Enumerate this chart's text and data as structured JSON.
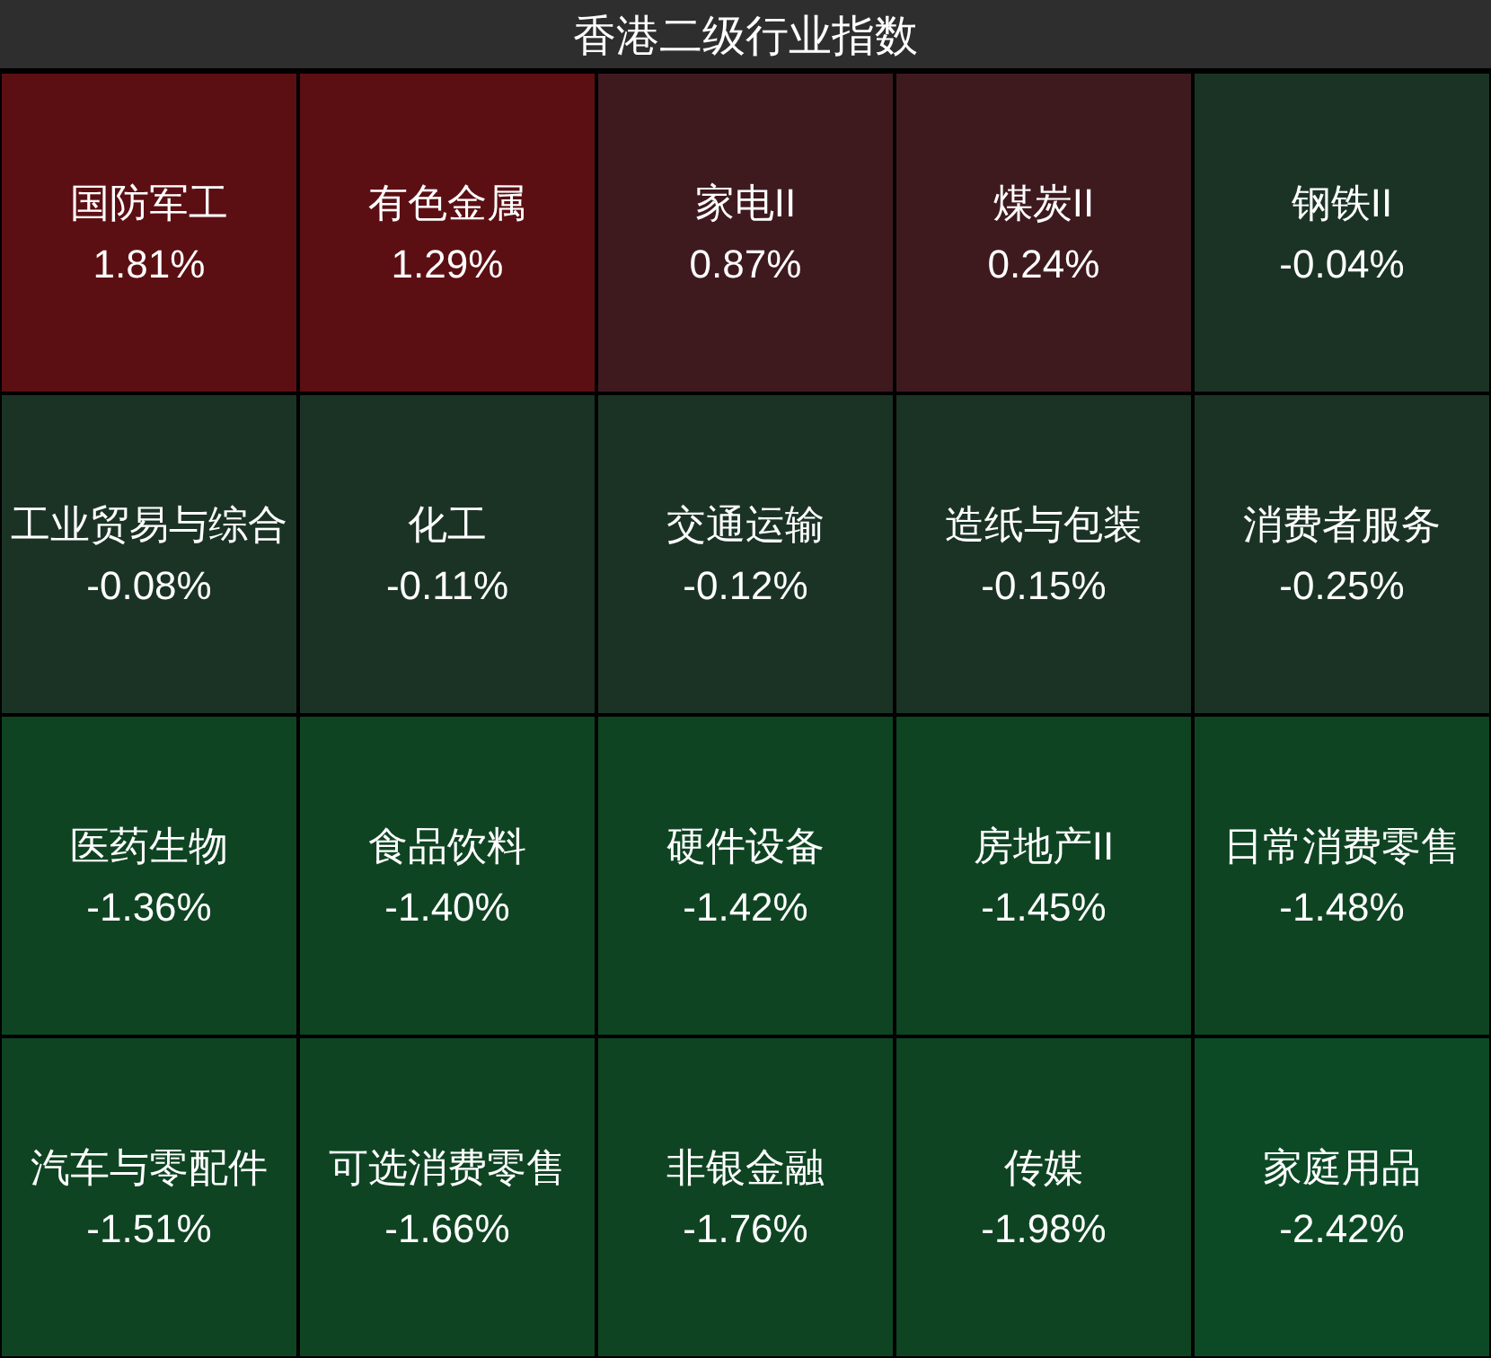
{
  "chart_data": {
    "type": "other",
    "title": "香港二级行业指数",
    "categories": [
      "国防军工",
      "有色金属",
      "家电II",
      "煤炭II",
      "钢铁II",
      "工业贸易与综合",
      "化工",
      "交通运输",
      "造纸与包装",
      "消费者服务",
      "医药生物",
      "食品饮料",
      "硬件设备",
      "房地产II",
      "日常消费零售",
      "汽车与零配件",
      "可选消费零售",
      "非银金融",
      "传媒",
      "家庭用品"
    ],
    "values": [
      1.81,
      1.29,
      0.87,
      0.24,
      -0.04,
      -0.08,
      -0.11,
      -0.12,
      -0.15,
      -0.25,
      -1.36,
      -1.4,
      -1.42,
      -1.45,
      -1.48,
      -1.51,
      -1.66,
      -1.76,
      -1.98,
      -2.42
    ],
    "value_labels": [
      "1.81%",
      "1.29%",
      "0.87%",
      "0.24%",
      "-0.04%",
      "-0.08%",
      "-0.11%",
      "-0.12%",
      "-0.15%",
      "-0.25%",
      "-1.36%",
      "-1.40%",
      "-1.42%",
      "-1.45%",
      "-1.48%",
      "-1.51%",
      "-1.66%",
      "-1.76%",
      "-1.98%",
      "-2.42%"
    ],
    "colors": [
      "#5c0f13",
      "#5c0f13",
      "#3e1a1f",
      "#3e1a1f",
      "#1b3325",
      "#1b3325",
      "#1b3325",
      "#1b3325",
      "#1b3325",
      "#1b3325",
      "#0f4423",
      "#0f4423",
      "#0f4423",
      "#0f4423",
      "#0f4423",
      "#0f4423",
      "#0f4423",
      "#0f4423",
      "#0f4423",
      "#0c4a26"
    ]
  }
}
